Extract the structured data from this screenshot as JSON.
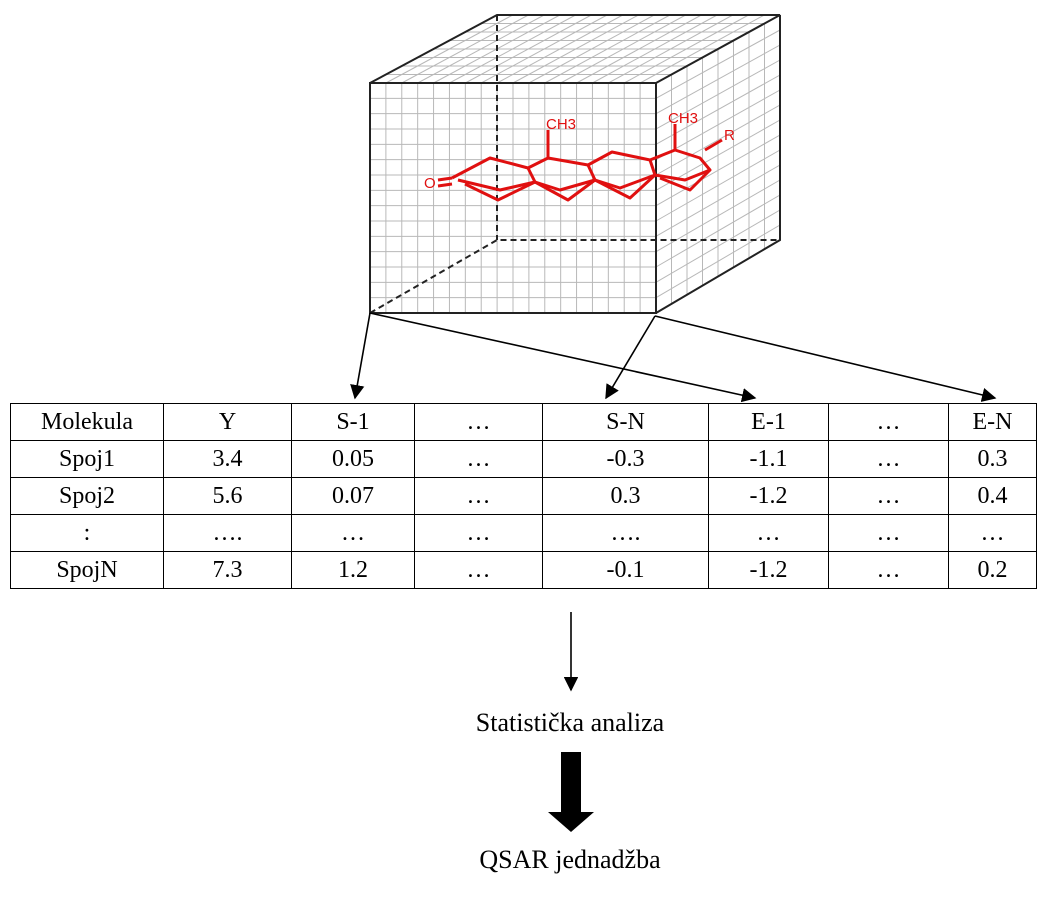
{
  "diagram": {
    "molecule_labels": {
      "methyl_1": "CH3",
      "methyl_2": "CH3",
      "oxygen": "O",
      "r_group": "R"
    },
    "table": {
      "headers": [
        "Molekula",
        "Y",
        "S-1",
        "…",
        "S-N",
        "E-1",
        "…",
        "E-N"
      ],
      "rows": [
        [
          "Spoj1",
          "3.4",
          "0.05",
          "…",
          "-0.3",
          "-1.1",
          "…",
          "0.3"
        ],
        [
          "Spoj2",
          "5.6",
          "0.07",
          "…",
          "0.3",
          "-1.2",
          "…",
          "0.4"
        ],
        [
          ":",
          "….",
          "…",
          "…",
          "….",
          "…",
          "…",
          "…"
        ],
        [
          "SpojN",
          "7.3",
          "1.2",
          "…",
          "-0.1",
          "-1.2",
          "…",
          "0.2"
        ]
      ]
    },
    "step1_label": "Statistička analiza",
    "step2_label": "QSAR jednadžba",
    "colors": {
      "molecule": "#e01010",
      "grid": "#b8b8b8",
      "edges": "#222222"
    }
  }
}
